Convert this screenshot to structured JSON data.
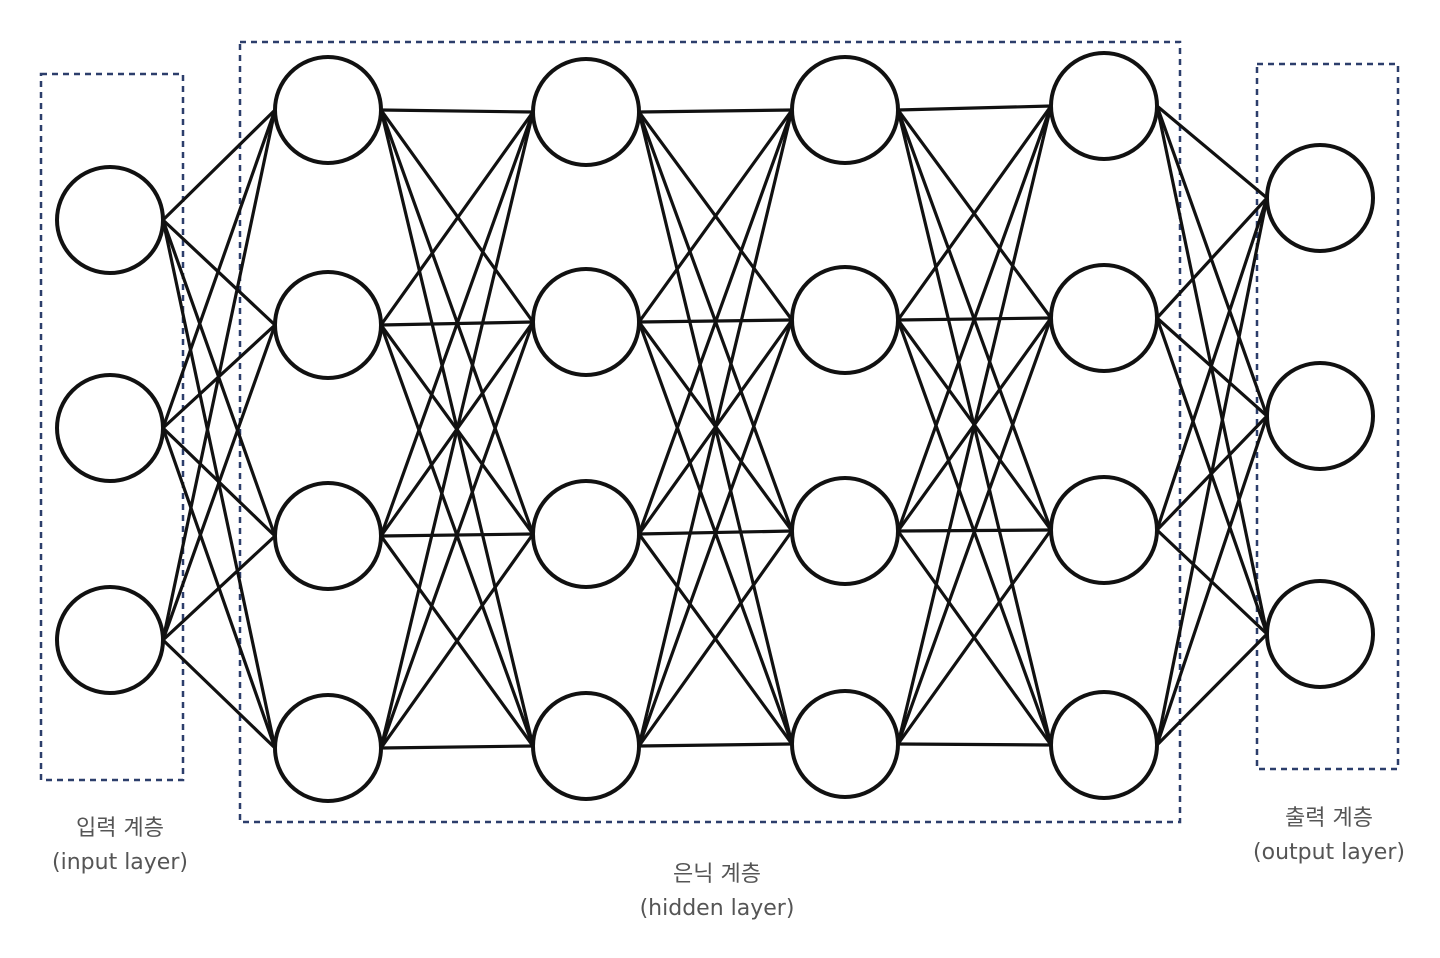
{
  "layers": {
    "input": {
      "title": "입력 계층",
      "subtitle": "(input layer)",
      "node_count": 3
    },
    "hidden": {
      "title": "은닉 계층",
      "subtitle": "(hidden layer)",
      "layer_count": 4,
      "nodes_per_layer": 4
    },
    "output": {
      "title": "출력 계층",
      "subtitle": "(output layer)",
      "node_count": 3
    }
  },
  "colors": {
    "node_stroke": "#111111",
    "edge": "#111111",
    "box_dash": "#2c3e6b",
    "caption": "#555555"
  }
}
